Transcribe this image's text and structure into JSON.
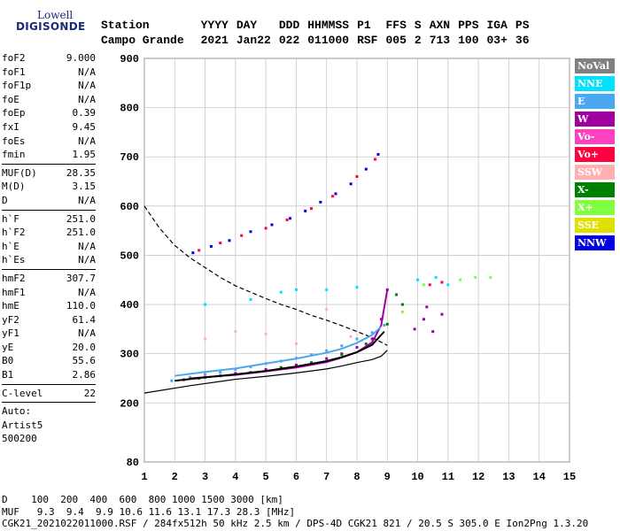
{
  "logo": {
    "line1": "Lowell",
    "line2": "DIGISONDE"
  },
  "header": {
    "labels": [
      "Station",
      "YYYY",
      "DAY",
      "DDD",
      "HHMMSS",
      "P1",
      "FFS",
      "S",
      "AXN",
      "PPS",
      "IGA",
      "PS"
    ],
    "values": [
      "Campo Grande",
      "2021",
      "Jan22",
      "022",
      "011000",
      "RSF",
      "005",
      "2",
      "713",
      "100",
      "03+",
      "36"
    ]
  },
  "params": {
    "group1": [
      {
        "name": "foF2",
        "value": "9.000"
      },
      {
        "name": "foF1",
        "value": "N/A"
      },
      {
        "name": "foF1p",
        "value": "N/A"
      },
      {
        "name": "foE",
        "value": "N/A"
      },
      {
        "name": "foEp",
        "value": "0.39"
      },
      {
        "name": "fxI",
        "value": "9.45"
      },
      {
        "name": "foEs",
        "value": "N/A"
      },
      {
        "name": "fmin",
        "value": "1.95"
      }
    ],
    "group2": [
      {
        "name": "MUF(D)",
        "value": "28.35"
      },
      {
        "name": "M(D)",
        "value": "3.15"
      },
      {
        "name": "D",
        "value": "N/A"
      }
    ],
    "group3": [
      {
        "name": "h`F",
        "value": "251.0"
      },
      {
        "name": "h`F2",
        "value": "251.0"
      },
      {
        "name": "h`E",
        "value": "N/A"
      },
      {
        "name": "h`Es",
        "value": "N/A"
      }
    ],
    "group4": [
      {
        "name": "hmF2",
        "value": "307.7"
      },
      {
        "name": "hmF1",
        "value": "N/A"
      },
      {
        "name": "hmE",
        "value": "110.0"
      },
      {
        "name": "yF2",
        "value": "61.4"
      },
      {
        "name": "yF1",
        "value": "N/A"
      },
      {
        "name": "yE",
        "value": "20.0"
      },
      {
        "name": "B0",
        "value": "55.6"
      },
      {
        "name": "B1",
        "value": "2.86"
      }
    ],
    "group5": [
      {
        "name": "C-level",
        "value": "22"
      }
    ],
    "auto": [
      "Auto:",
      "Artist5",
      "500200"
    ]
  },
  "legend": [
    {
      "label": "NoVal",
      "bg": "#808080",
      "fg": "#ffffff"
    },
    {
      "label": "NNE",
      "bg": "#00e0ff",
      "fg": "#ffffff"
    },
    {
      "label": "E",
      "bg": "#4aa8f0",
      "fg": "#ffffff"
    },
    {
      "label": "W",
      "bg": "#a000a0",
      "fg": "#ffffff"
    },
    {
      "label": "Vo-",
      "bg": "#ff40c0",
      "fg": "#ffffff"
    },
    {
      "label": "Vo+",
      "bg": "#ff0040",
      "fg": "#ffffff"
    },
    {
      "label": "SSW",
      "bg": "#ffb0b0",
      "fg": "#ffffff"
    },
    {
      "label": "X-",
      "bg": "#008000",
      "fg": "#ffffff"
    },
    {
      "label": "X+",
      "bg": "#80ff40",
      "fg": "#ffffff"
    },
    {
      "label": "SSE",
      "bg": "#e0e000",
      "fg": "#ffffff"
    },
    {
      "label": "NNW",
      "bg": "#0000e0",
      "fg": "#ffffff"
    }
  ],
  "footer": {
    "row1": "D    100  200  400  600  800 1000 1500 3000 [km]",
    "row2": "MUF   9.3  9.4  9.9 10.6 11.6 13.1 17.3 28.3 [MHz]",
    "row3": "CGK21_2021022011000.RSF / 284fx512h 50 kHz 2.5 km / DPS-4D CGK21 821 / 20.5 S 305.0 E Ion2Png 1.3.20"
  },
  "chart_data": {
    "type": "scatter",
    "xlabel": "",
    "ylabel": "",
    "xlim": [
      1,
      15
    ],
    "ylim": [
      80,
      900
    ],
    "x_ticks": [
      1,
      2,
      3,
      4,
      5,
      6,
      7,
      8,
      9,
      10,
      11,
      12,
      13,
      14,
      15
    ],
    "y_ticks": [
      80,
      200,
      300,
      400,
      500,
      600,
      700,
      800,
      900
    ],
    "grid": true,
    "series": [
      {
        "name": "E",
        "color": "#4aa8f0",
        "points": [
          [
            1.9,
            245
          ],
          [
            2.5,
            252
          ],
          [
            3,
            258
          ],
          [
            3.5,
            262
          ],
          [
            4,
            268
          ],
          [
            4.5,
            273
          ],
          [
            5,
            280
          ],
          [
            5.5,
            285
          ],
          [
            6,
            291
          ],
          [
            6.5,
            298
          ],
          [
            7,
            306
          ],
          [
            7.5,
            316
          ],
          [
            8,
            330
          ],
          [
            8.5,
            343
          ],
          [
            8.9,
            358
          ]
        ]
      },
      {
        "name": "W",
        "color": "#a000a0",
        "points": [
          [
            2.3,
            247
          ],
          [
            3,
            252
          ],
          [
            4,
            260
          ],
          [
            5,
            268
          ],
          [
            6,
            277
          ],
          [
            7,
            290
          ],
          [
            7.5,
            300
          ],
          [
            8,
            313
          ],
          [
            8.5,
            330
          ],
          [
            8.8,
            370
          ],
          [
            9,
            430
          ],
          [
            9.9,
            350
          ],
          [
            10.2,
            370
          ],
          [
            10.5,
            345
          ],
          [
            10.8,
            380
          ],
          [
            10.3,
            395
          ]
        ]
      },
      {
        "name": "X-",
        "color": "#008000",
        "points": [
          [
            2.8,
            250
          ],
          [
            3.5,
            255
          ],
          [
            4.5,
            262
          ],
          [
            5.5,
            272
          ],
          [
            6.5,
            282
          ],
          [
            7.5,
            298
          ],
          [
            8.3,
            320
          ],
          [
            9,
            360
          ],
          [
            9.3,
            420
          ],
          [
            9.5,
            400
          ]
        ]
      },
      {
        "name": "NNW",
        "color": "#0000e0",
        "points": [
          [
            2.6,
            505
          ],
          [
            3.2,
            518
          ],
          [
            3.8,
            530
          ],
          [
            4.5,
            548
          ],
          [
            5.2,
            562
          ],
          [
            5.8,
            575
          ],
          [
            6.3,
            590
          ],
          [
            6.8,
            608
          ],
          [
            7.3,
            625
          ],
          [
            7.8,
            645
          ],
          [
            8.3,
            675
          ],
          [
            8.7,
            705
          ]
        ]
      },
      {
        "name": "Vo+",
        "color": "#ff0040",
        "points": [
          [
            2.8,
            510
          ],
          [
            3.5,
            525
          ],
          [
            4.2,
            540
          ],
          [
            5,
            555
          ],
          [
            5.7,
            572
          ],
          [
            6.5,
            595
          ],
          [
            7.2,
            620
          ],
          [
            8,
            660
          ],
          [
            8.6,
            695
          ],
          [
            10.4,
            440
          ],
          [
            10.8,
            445
          ]
        ]
      },
      {
        "name": "NNE",
        "color": "#00e0ff",
        "points": [
          [
            3,
            400
          ],
          [
            4.5,
            410
          ],
          [
            5.5,
            425
          ],
          [
            6,
            430
          ],
          [
            7,
            430
          ],
          [
            8,
            435
          ],
          [
            10,
            450
          ],
          [
            10.6,
            455
          ],
          [
            11,
            440
          ]
        ]
      },
      {
        "name": "SSW",
        "color": "#ffb0b0",
        "points": [
          [
            3,
            330
          ],
          [
            4,
            345
          ],
          [
            5,
            340
          ],
          [
            6,
            320
          ],
          [
            7,
            390
          ],
          [
            7.8,
            335
          ]
        ]
      },
      {
        "name": "X+",
        "color": "#80ff40",
        "points": [
          [
            9.5,
            385
          ],
          [
            10.2,
            440
          ],
          [
            11.4,
            450
          ],
          [
            11.9,
            455
          ],
          [
            12.4,
            455
          ]
        ]
      }
    ],
    "profile_line": {
      "x": [
        1,
        2.5,
        4,
        5,
        6,
        7,
        7.5,
        8,
        8.5,
        8.8,
        9.0
      ],
      "y": [
        220,
        235,
        248,
        254,
        261,
        269,
        275,
        282,
        288,
        295,
        307
      ]
    },
    "dashed_line": {
      "x": [
        1,
        1.5,
        2,
        2.5,
        3,
        3.5,
        4,
        4.5,
        5,
        5.5,
        6,
        6.5,
        7,
        7.5,
        8,
        8.5,
        9
      ],
      "y": [
        600,
        555,
        520,
        495,
        475,
        455,
        438,
        425,
        412,
        400,
        390,
        378,
        368,
        357,
        345,
        333,
        317
      ]
    },
    "trace_lines": [
      {
        "color": "#a000a0",
        "x": [
          2.5,
          4,
          5,
          6,
          7,
          7.5,
          8,
          8.5,
          8.8,
          9.0
        ],
        "y": [
          250,
          257,
          264,
          272,
          283,
          292,
          303,
          323,
          358,
          430
        ]
      },
      {
        "color": "#000000",
        "x": [
          2,
          3,
          4,
          5,
          6,
          7,
          7.5,
          8,
          8.5,
          8.9
        ],
        "y": [
          245,
          252,
          258,
          265,
          274,
          285,
          293,
          303,
          318,
          345
        ]
      },
      {
        "color": "#4aa8f0",
        "x": [
          2,
          3,
          4,
          5,
          6,
          7,
          7.5,
          8,
          8.5,
          8.8
        ],
        "y": [
          255,
          263,
          270,
          280,
          290,
          302,
          310,
          322,
          338,
          355
        ]
      }
    ]
  }
}
